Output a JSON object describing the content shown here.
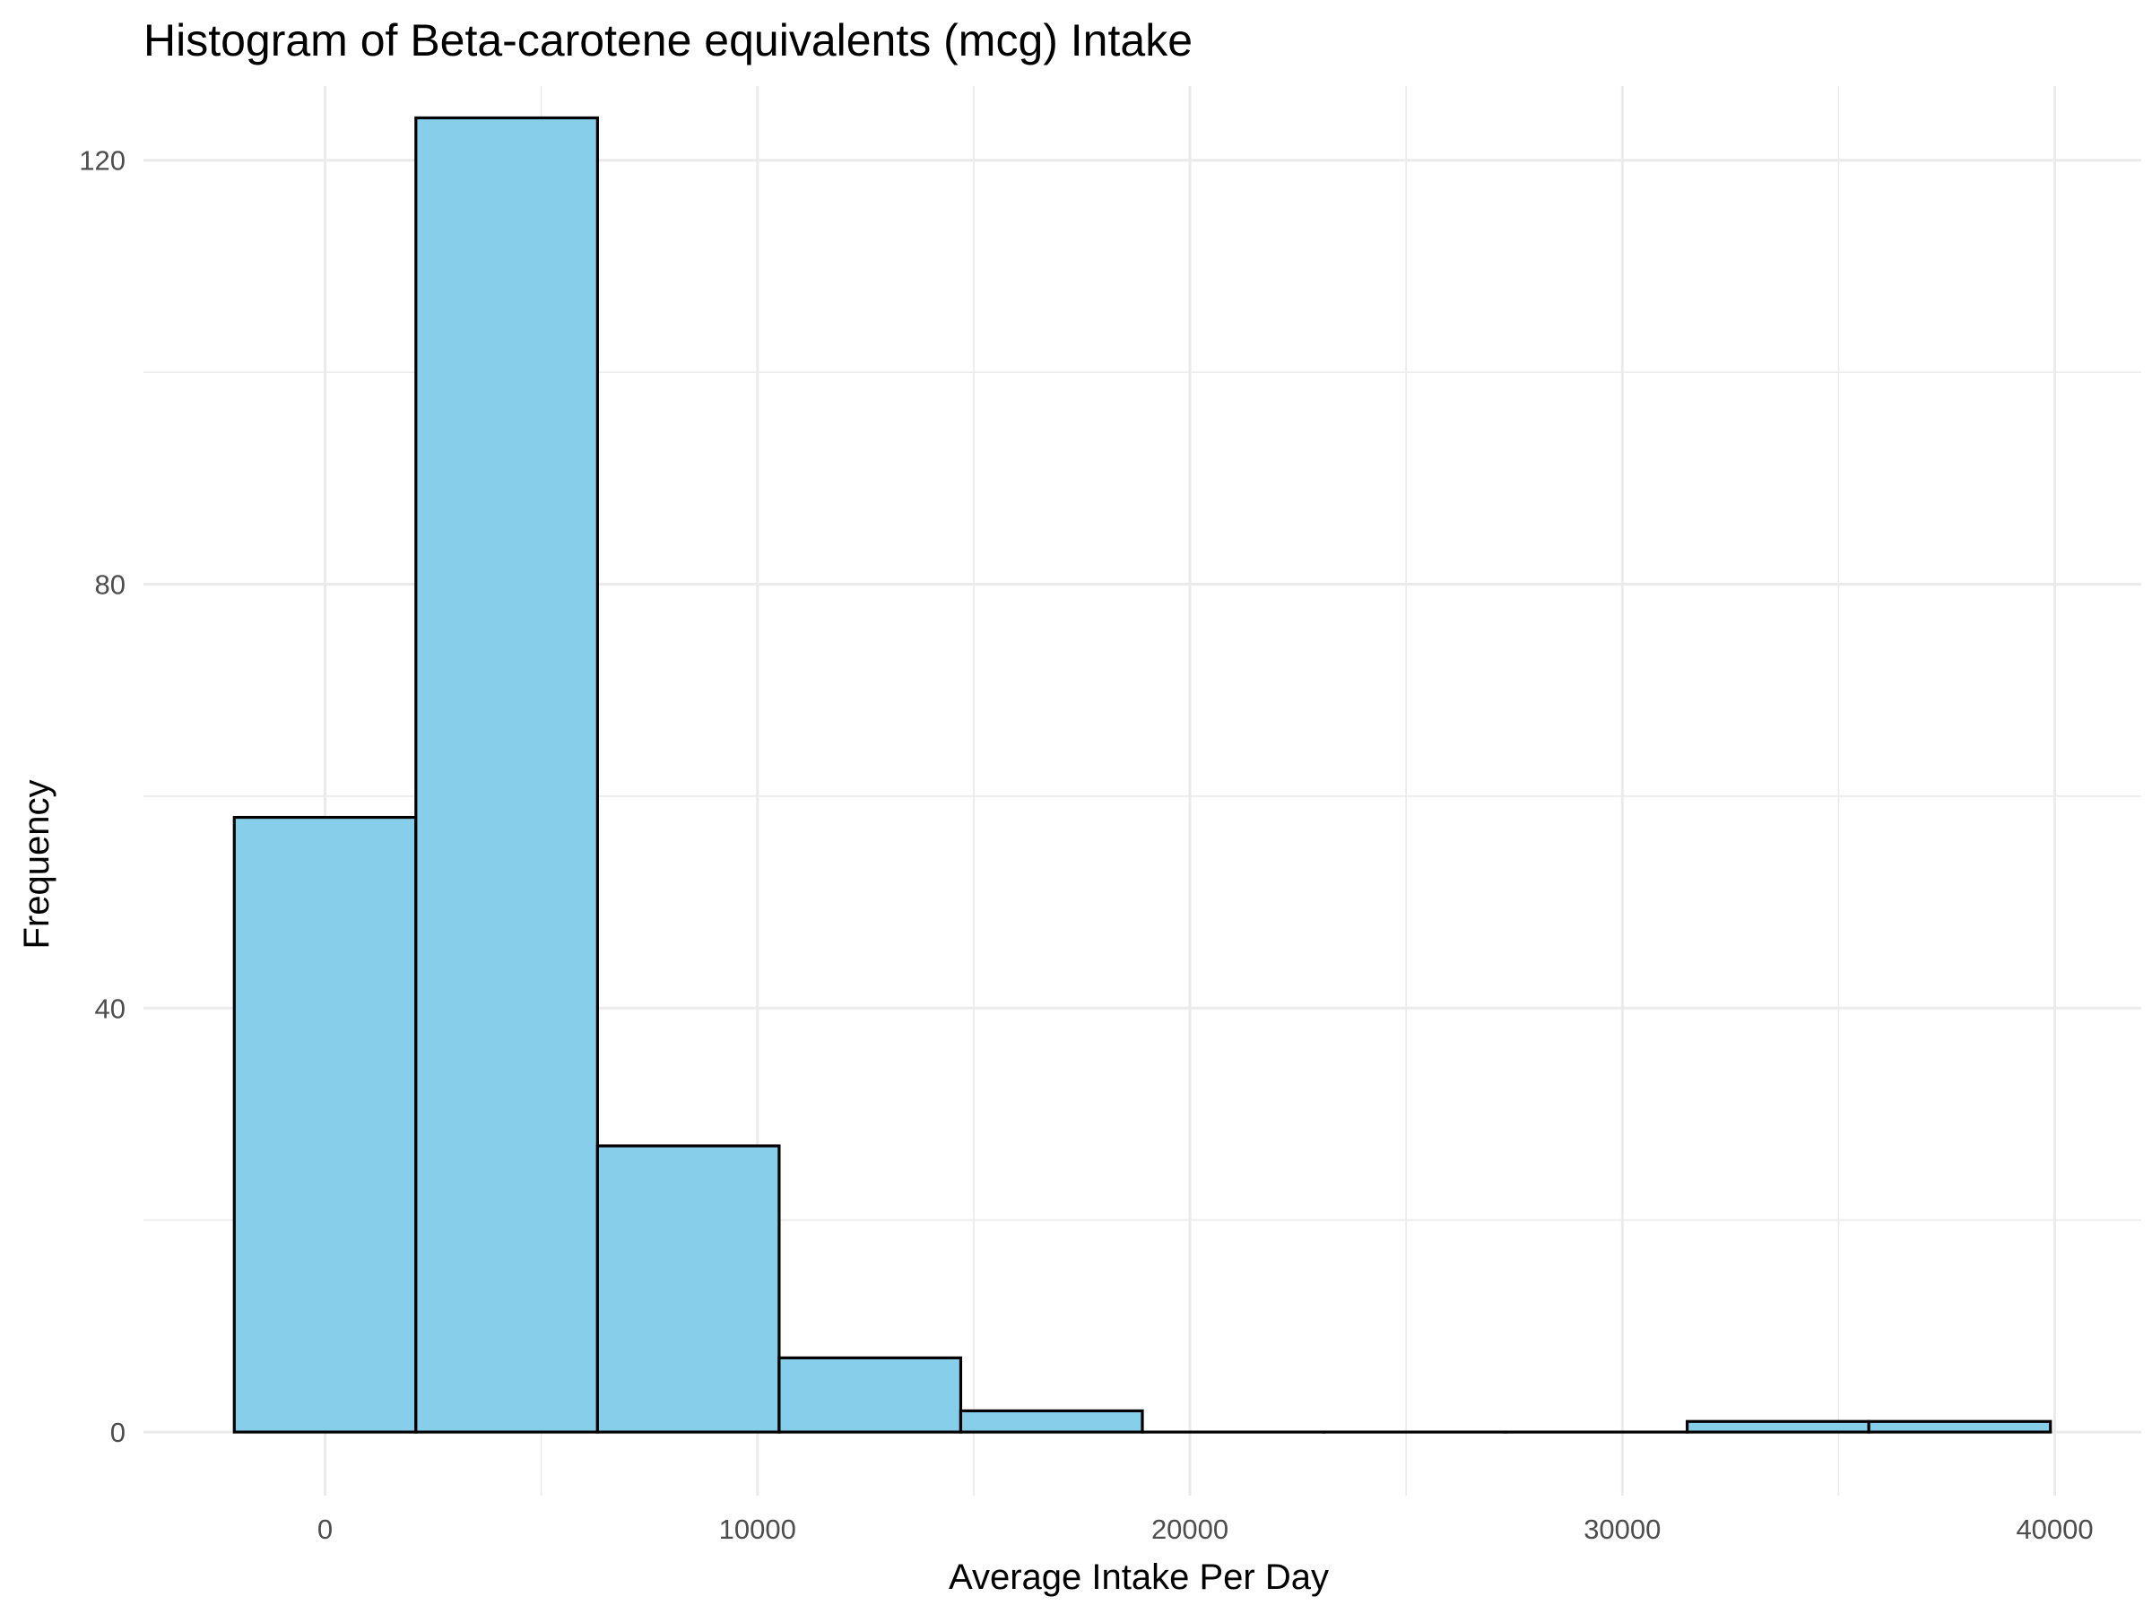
{
  "chart_data": {
    "type": "bar",
    "title": "Histogram of Beta-carotene equivalents (mcg) Intake",
    "xlabel": "Average Intake Per Day",
    "ylabel": "Frequency",
    "xlim": [
      -4200,
      42000
    ],
    "ylim": [
      -6,
      127
    ],
    "x_ticks": [
      0,
      10000,
      20000,
      30000,
      40000
    ],
    "x_tick_labels": [
      "0",
      "10000",
      "20000",
      "30000",
      "40000"
    ],
    "y_ticks": [
      0,
      40,
      80,
      120
    ],
    "y_tick_labels": [
      "0",
      "40",
      "80",
      "120"
    ],
    "bins": [
      {
        "x_start": -2100,
        "x_end": 2100,
        "count": 58
      },
      {
        "x_start": 2100,
        "x_end": 6300,
        "count": 124
      },
      {
        "x_start": 6300,
        "x_end": 10500,
        "count": 27
      },
      {
        "x_start": 10500,
        "x_end": 14700,
        "count": 7
      },
      {
        "x_start": 14700,
        "x_end": 18900,
        "count": 2
      },
      {
        "x_start": 18900,
        "x_end": 23100,
        "count": 0
      },
      {
        "x_start": 23100,
        "x_end": 27300,
        "count": 0
      },
      {
        "x_start": 27300,
        "x_end": 31500,
        "count": 0
      },
      {
        "x_start": 31500,
        "x_end": 35700,
        "count": 1
      },
      {
        "x_start": 35700,
        "x_end": 39900,
        "count": 1
      }
    ],
    "bar_fill": "#87ceeb",
    "bar_outline": "#000000",
    "grid": true,
    "legend": "none"
  }
}
